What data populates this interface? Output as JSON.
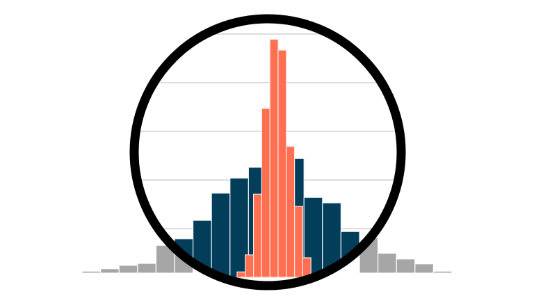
{
  "chart_data": {
    "type": "bar",
    "title": "",
    "xlabel": "",
    "ylabel": "",
    "grid": true,
    "gridlines": [
      10,
      20,
      30,
      40,
      50
    ],
    "ylim": [
      0,
      50
    ],
    "series": [
      {
        "role": "background-histogram",
        "color": "#a6a6a6",
        "bins": 20,
        "values": [
          0.4,
          0.9,
          1.6,
          2.0,
          5.7,
          5.7,
          null,
          null,
          null,
          null,
          null,
          null,
          null,
          null,
          null,
          7.3,
          4.1,
          2.9,
          1.9,
          0.4
        ]
      },
      {
        "role": "magnified-histogram",
        "color": "#023e5a",
        "bin_offset": 5,
        "values": [
          7.9,
          11.7,
          17.3,
          20.4,
          22.6,
          23.6,
          24.4,
          16.4,
          15.3,
          9.4
        ]
      },
      {
        "role": "narrow-histogram",
        "color": "#ff6f51",
        "values": [
          1.1,
          4.6,
          17.1,
          34.7,
          48.9,
          46.7,
          26.9,
          14.6,
          4.0
        ]
      }
    ],
    "annotations": {
      "magnifier": "circle",
      "magnifier_color": "#000000"
    }
  }
}
